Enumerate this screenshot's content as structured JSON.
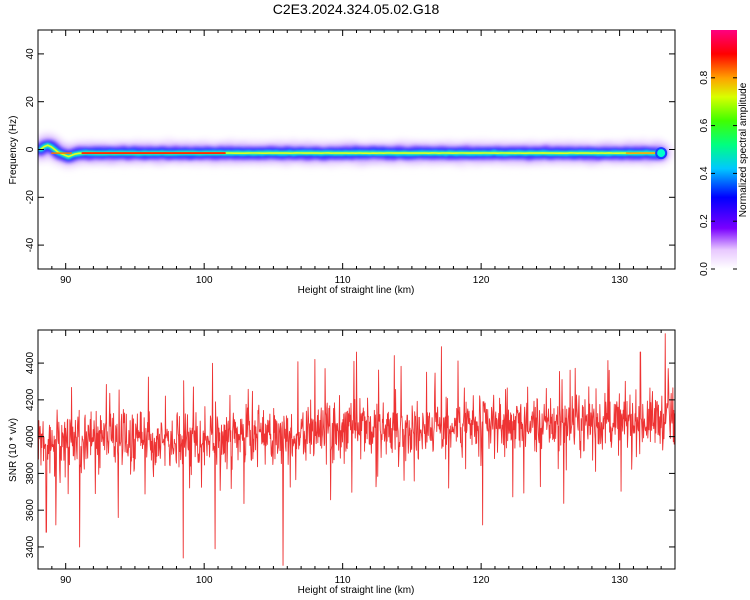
{
  "title": "C2E3.2024.324.05.02.G18",
  "chart_data": [
    {
      "type": "heatmap",
      "xlabel": "Height of straight line (km)",
      "ylabel": "Frequency (Hz)",
      "xlim": [
        88,
        134
      ],
      "ylim": [
        -50,
        50
      ],
      "xticks": [
        90,
        100,
        110,
        120,
        130
      ],
      "yticks": [
        -40,
        -20,
        0,
        20,
        40
      ],
      "colorbar": {
        "label": "Normalized spectral amplitude",
        "range": [
          0,
          1
        ],
        "ticks": [
          "0.0",
          "0.2",
          "0.4",
          "0.6",
          "0.8"
        ]
      },
      "ridge": {
        "x": [
          88.2,
          88.6,
          89.0,
          89.4,
          89.8,
          90.2,
          90.6,
          91.0,
          92,
          93,
          95,
          98,
          100,
          102,
          105,
          110,
          115,
          120,
          125,
          130,
          133
        ],
        "y": [
          0,
          2,
          1,
          -1,
          -2,
          -3,
          -2,
          -1.5,
          -1.5,
          -1.5,
          -1.5,
          -1.5,
          -1.5,
          -1.5,
          -1.5,
          -1.5,
          -1.5,
          -1.5,
          -1.5,
          -1.5,
          -1.5
        ]
      }
    },
    {
      "type": "line",
      "xlabel": "Height of straight line (km)",
      "ylabel": "SNR (10 * v/v)",
      "xlim": [
        88,
        134
      ],
      "ylim": [
        3280,
        4580
      ],
      "xticks": [
        90,
        100,
        110,
        120,
        130
      ],
      "yticks": [
        3400,
        3600,
        3800,
        4000,
        4200,
        4400
      ],
      "series": [
        {
          "color": "#ee3333",
          "baseline": {
            "x": [
              88,
              95,
              100,
              105,
              110,
              115,
              120,
              125,
              130,
              134
            ],
            "y": [
              3980,
              3990,
              3990,
              4000,
              4030,
              4050,
              4060,
              4070,
              4080,
              4100
            ]
          },
          "spikes": {
            "x": [
              88.6,
              89.3,
              91.0,
              93.8,
              98.5,
              100.8,
              105.7,
              108.0,
              111.0,
              120.1,
              131.5,
              133.3
            ],
            "y": [
              3480,
              3520,
              3400,
              3560,
              3340,
              3390,
              3300,
              4420,
              4460,
              3520,
              4460,
              4560
            ]
          }
        }
      ]
    }
  ]
}
